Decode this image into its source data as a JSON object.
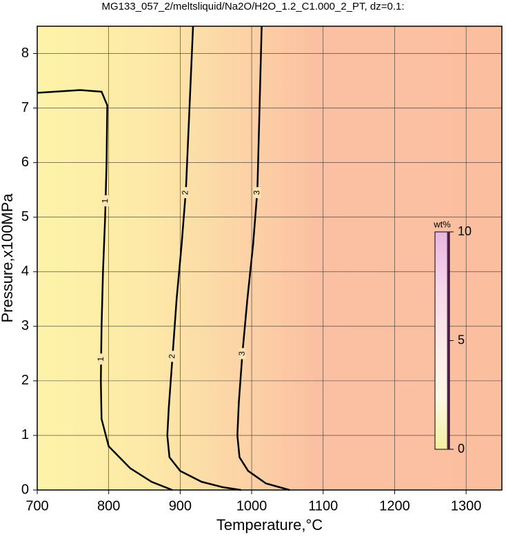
{
  "chart_data": {
    "type": "contour",
    "title": "MG133_057_2/meltsliquid/Na2O/H2O_1.2_C1.000_2_PT, dz=0.1:",
    "x_label": "Temperature,°C",
    "y_label": "Pressure,x100MPa",
    "xlim": [
      700,
      1350
    ],
    "ylim": [
      0,
      8.5
    ],
    "xticks": [
      700,
      800,
      900,
      1000,
      1100,
      1200,
      1300
    ],
    "yticks": [
      0,
      1,
      2,
      3,
      4,
      5,
      6,
      7,
      8
    ],
    "grid": true,
    "contours": [
      {
        "level": 1,
        "color": "#000000",
        "x": [
          700,
          760,
          790,
          798,
          797,
          795,
          792,
          790,
          789,
          790,
          800,
          830,
          860,
          889
        ],
        "y": [
          7.28,
          7.33,
          7.3,
          7.05,
          6.0,
          5.0,
          4.0,
          3.0,
          2.0,
          1.3,
          0.8,
          0.4,
          0.15,
          0
        ]
      },
      {
        "level": 2,
        "color": "#000000",
        "x": [
          918,
          913,
          908,
          902,
          895,
          889,
          884,
          882,
          885,
          900,
          930,
          960,
          985
        ],
        "y": [
          8.5,
          7.0,
          5.5,
          4.5,
          3.5,
          2.4,
          1.5,
          1.0,
          0.6,
          0.35,
          0.15,
          0.05,
          0
        ]
      },
      {
        "level": 3,
        "color": "#000000",
        "x": [
          1014,
          1011,
          1008,
          1002,
          994,
          987,
          982,
          980,
          983,
          995,
          1020,
          1053
        ],
        "y": [
          8.5,
          7.0,
          5.5,
          4.5,
          3.5,
          2.5,
          1.6,
          1.0,
          0.6,
          0.35,
          0.12,
          0
        ]
      }
    ],
    "contour_label_y": [
      [
        5.3,
        2.4
      ],
      [
        5.45,
        2.45
      ],
      [
        5.45,
        2.5
      ]
    ],
    "colorbar": {
      "label": "wt%",
      "lim": [
        0,
        10
      ],
      "ticks": [
        0,
        5,
        10
      ],
      "colors": [
        "#f4f0a0",
        "#fdf8e8",
        "#fbe9ea",
        "#f5d6ea",
        "#e8b6e0"
      ]
    }
  }
}
